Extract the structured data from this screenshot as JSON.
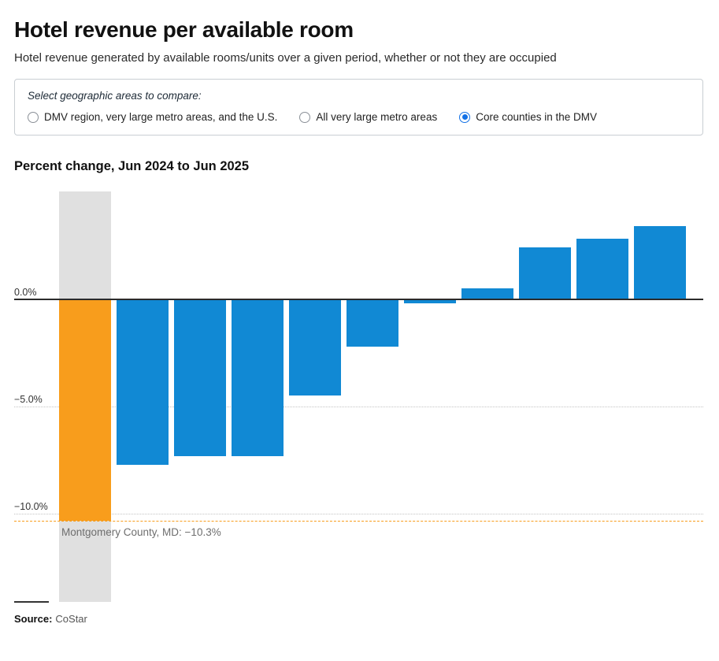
{
  "page": {
    "title": "Hotel revenue per available room",
    "subtitle": "Hotel revenue generated by available rooms/units over a given period, whether or not they are occupied",
    "source_label": "Source:",
    "source_value": "CoStar"
  },
  "controls": {
    "legend": "Select geographic areas to compare:",
    "options": [
      {
        "label": "DMV region, very large metro areas, and the U.S.",
        "selected": false
      },
      {
        "label": "All very large metro areas",
        "selected": false
      },
      {
        "label": "Core counties in the DMV",
        "selected": true
      }
    ]
  },
  "chart_data": {
    "type": "bar",
    "title": "Percent change, Jun 2024 to Jun 2025",
    "values": [
      -10.3,
      -7.7,
      -7.3,
      -7.3,
      -4.5,
      -2.2,
      -0.2,
      0.5,
      2.4,
      2.8,
      3.4
    ],
    "highlight_index": 0,
    "highlight_value": -10.3,
    "highlight_label": "Montgomery County, MD: −10.3%",
    "y_ticks": [
      {
        "value": 0,
        "label": "0.0%"
      },
      {
        "value": -5,
        "label": "−5.0%"
      },
      {
        "value": -10,
        "label": "−10.0%"
      }
    ],
    "ylim": [
      -14.1,
      5.0
    ],
    "grid": true,
    "bar_color": "#1189d4",
    "highlight_color": "#f89d1c",
    "band_color": "#e0e0e0",
    "xlabel": "",
    "ylabel": ""
  }
}
